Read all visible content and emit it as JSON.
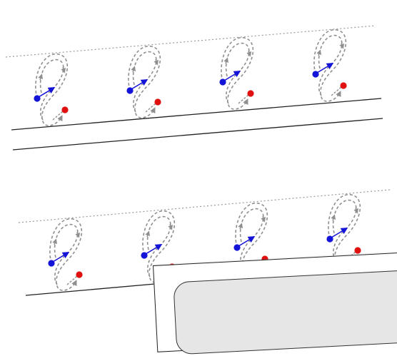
{
  "scene": {
    "description_free": true,
    "colors": {
      "guide_line": "#222222",
      "dotted_line": "#9a9a9a",
      "loop": "#8f8f8f",
      "blue_dot": "#1414d8",
      "red_dot": "#e01010",
      "card_border": "#222222",
      "card_fill": "#e6e6e6"
    },
    "rows": 2,
    "figures_per_row": 4
  },
  "card": {
    "icon": "rounded-panel"
  }
}
